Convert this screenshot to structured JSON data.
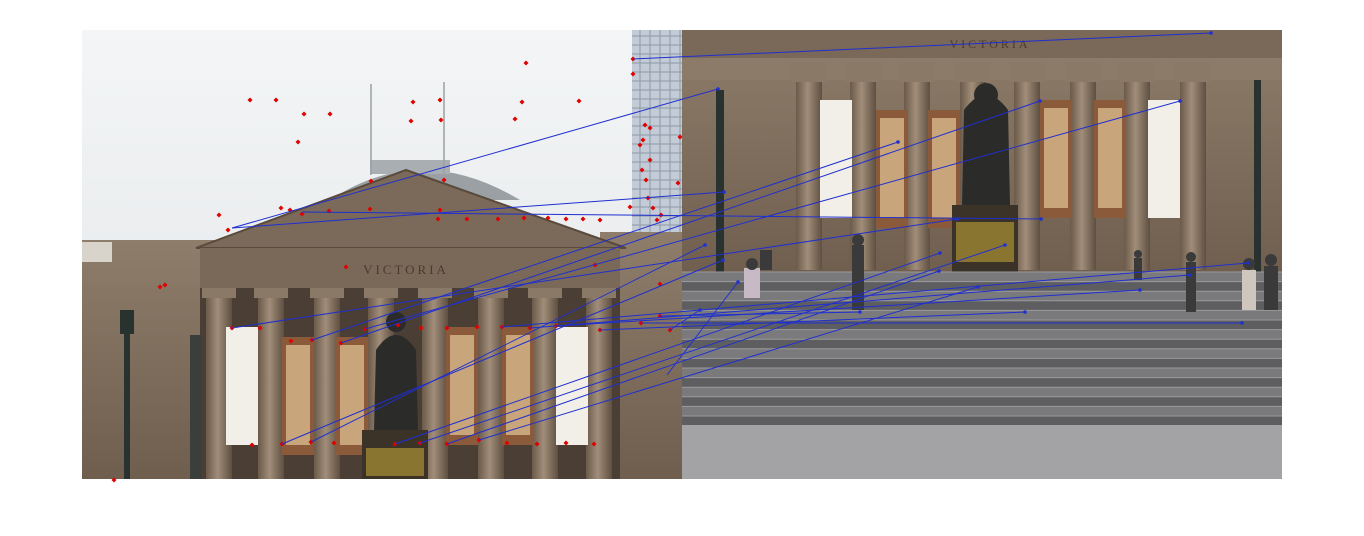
{
  "figure": {
    "description_hidden": "",
    "colors": {
      "background": "#ffffff",
      "keypoint": "#e00000",
      "match_line": "#1f2fd0",
      "sky_left": "#eef0f2",
      "sky_right": "#d8dcdf",
      "stone": "#8b7866",
      "stone_dark": "#6a5848",
      "banner": "#f2efe8",
      "steps": "#6e6e70",
      "plaza": "#a3a3a5",
      "statue": "#2b2b2a",
      "skyscraper": "#c3ccd6"
    },
    "pediment_inscription_left": "VICTORIA",
    "pediment_inscription_right": "VICTORIA",
    "keypoint_count_left": 82,
    "match_count": 22
  }
}
